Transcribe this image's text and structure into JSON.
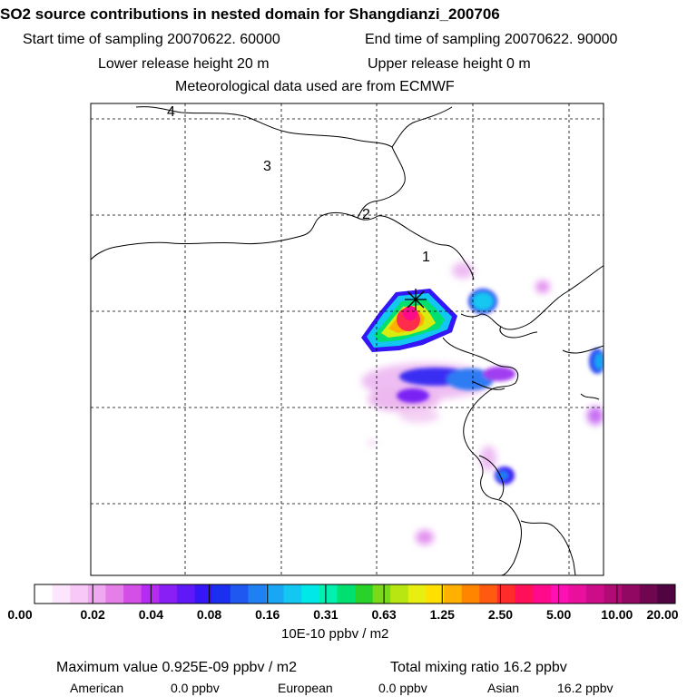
{
  "header": {
    "title": "SO2 source contributions in nested domain for Shangdianzi_200706",
    "start_label": "Start time of sampling 20070622. 60000",
    "end_label": "End time of sampling 20070622. 90000",
    "lower_label": "Lower release height   20 m",
    "upper_label": "Upper release height    0 m",
    "met_label": "Meteorological data used are from ECMWF"
  },
  "map": {
    "ring_labels": [
      "1",
      "2",
      "3",
      "4"
    ],
    "receptor_marker": "asterisk-icon"
  },
  "colorbar": {
    "unit": "10E-10 ppbv / m2",
    "tick_labels": [
      "0.00",
      "0.02",
      "0.04",
      "0.08",
      "0.16",
      "0.31",
      "0.63",
      "1.25",
      "2.50",
      "5.00",
      "10.00",
      "20.00"
    ],
    "colors": [
      "#ffffff",
      "#fde6fd",
      "#f8c9f8",
      "#f0a8f0",
      "#e67ee8",
      "#d34fe6",
      "#b52bf2",
      "#8a1ff5",
      "#5f18f7",
      "#3416f6",
      "#1a2ff0",
      "#1e58f0",
      "#1f80f2",
      "#19a6f5",
      "#12c8f2",
      "#00e8e8",
      "#00f0b0",
      "#00e070",
      "#28d228",
      "#7ada1a",
      "#b8e612",
      "#e8ee10",
      "#ffe000",
      "#ffb000",
      "#ff8400",
      "#ff5a10",
      "#ff2c2c",
      "#ff1058",
      "#ff0a8a",
      "#ff10b4",
      "#e8109c",
      "#cc0c88",
      "#b00a74",
      "#900862",
      "#700650",
      "#500440"
    ]
  },
  "footer": {
    "max_text": "Maximum value  0.925E-09 ppbv / m2",
    "total_text": "Total mixing ratio      16.2 ppbv",
    "american": "American",
    "american_val": "0.0 ppbv",
    "european": "European",
    "european_val": "0.0 ppbv",
    "asian": "Asian",
    "asian_val": "16.2 ppbv"
  },
  "chart_data": {
    "type": "heatmap",
    "title": "SO2 source contributions in nested domain for Shangdianzi_200706",
    "colorbar_ticks": [
      0.0,
      0.02,
      0.04,
      0.08,
      0.16,
      0.31,
      0.63,
      1.25,
      2.5,
      5.0,
      10.0,
      20.0
    ],
    "colorbar_unit": "10E-10 ppbv / m2",
    "max_value": "0.925E-09 ppbv / m2",
    "total_mixing_ratio_ppbv": 16.2,
    "contributions_ppbv": {
      "American": 0.0,
      "European": 0.0,
      "Asian": 16.2
    },
    "grid": true
  }
}
